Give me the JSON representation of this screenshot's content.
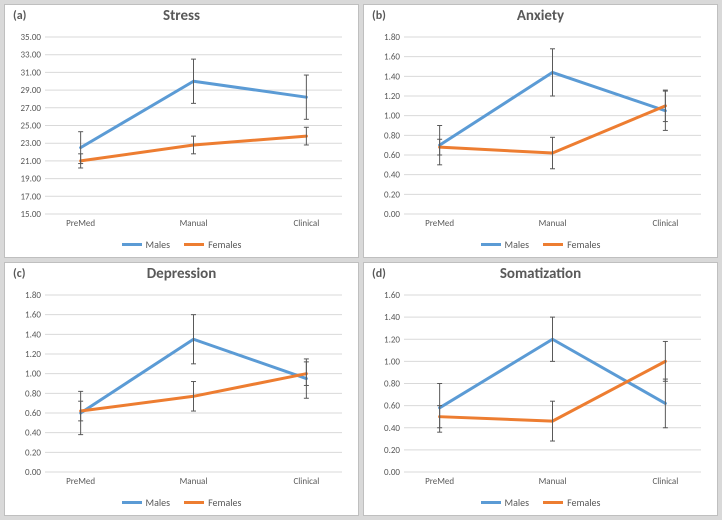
{
  "colors": {
    "males": "#5b9bd5",
    "females": "#ed7d31",
    "grid": "#d9d9d9",
    "text": "#595959",
    "border": "#bfbfbf",
    "bg": "#ffffff"
  },
  "categories": [
    "PreMed",
    "Manual",
    "Clinical"
  ],
  "series_names": {
    "males": "Males",
    "females": "Females"
  },
  "panels": [
    {
      "key": "a",
      "label": "(a)",
      "title": "Stress",
      "ymin": 15.0,
      "ymax": 35.0,
      "ystep": 2.0,
      "decimals": 2,
      "males": {
        "y": [
          22.5,
          30.0,
          28.2
        ],
        "err": [
          1.8,
          2.5,
          2.5
        ]
      },
      "females": {
        "y": [
          21.0,
          22.8,
          23.8
        ],
        "err": [
          0.8,
          1.0,
          1.0
        ]
      }
    },
    {
      "key": "b",
      "label": "(b)",
      "title": "Anxiety",
      "ymin": 0.0,
      "ymax": 1.8,
      "ystep": 0.2,
      "decimals": 2,
      "males": {
        "y": [
          0.7,
          1.44,
          1.05
        ],
        "err": [
          0.2,
          0.24,
          0.2
        ]
      },
      "females": {
        "y": [
          0.68,
          0.62,
          1.1
        ],
        "err": [
          0.08,
          0.16,
          0.16
        ]
      }
    },
    {
      "key": "c",
      "label": "(c)",
      "title": "Depression",
      "ymin": 0.0,
      "ymax": 1.8,
      "ystep": 0.2,
      "decimals": 2,
      "males": {
        "y": [
          0.6,
          1.35,
          0.95
        ],
        "err": [
          0.22,
          0.25,
          0.2
        ]
      },
      "females": {
        "y": [
          0.62,
          0.77,
          1.0
        ],
        "err": [
          0.1,
          0.15,
          0.12
        ]
      }
    },
    {
      "key": "d",
      "label": "(d)",
      "title": "Somatization",
      "ymin": 0.0,
      "ymax": 1.6,
      "ystep": 0.2,
      "decimals": 2,
      "males": {
        "y": [
          0.58,
          1.2,
          0.62
        ],
        "err": [
          0.22,
          0.2,
          0.22
        ]
      },
      "females": {
        "y": [
          0.5,
          0.46,
          1.0
        ],
        "err": [
          0.1,
          0.18,
          0.18
        ]
      }
    }
  ],
  "line_width": 3,
  "err_cap": 5
}
